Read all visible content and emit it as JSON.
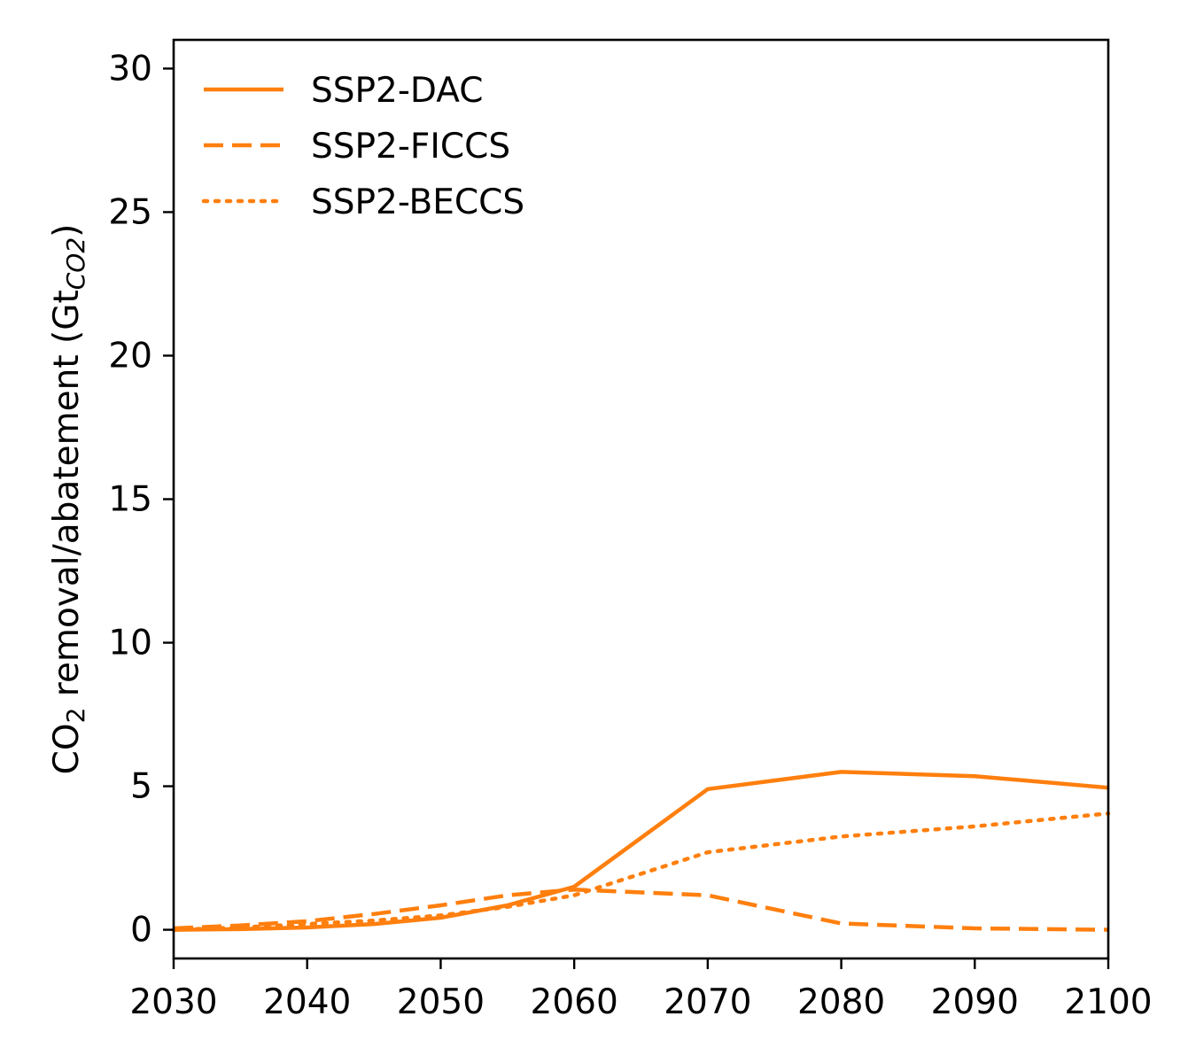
{
  "chart_data": {
    "type": "line",
    "title": "",
    "xlabel": "",
    "ylabel": {
      "prefix": "CO",
      "prefix_sub": "2",
      "main": " removal/abatement (Gt",
      "unit_sub": "CO2",
      "suffix": ")"
    },
    "xlim": [
      2030,
      2100
    ],
    "ylim": [
      -1,
      31
    ],
    "xticks": [
      2030,
      2040,
      2050,
      2060,
      2070,
      2080,
      2090,
      2100
    ],
    "yticks": [
      0,
      5,
      10,
      15,
      20,
      25,
      30
    ],
    "grid": false,
    "legend_position": "top-left",
    "series": [
      {
        "name": "SSP2-DAC",
        "style": "solid",
        "color": "#ff7f0e",
        "x": [
          2030,
          2035,
          2040,
          2045,
          2050,
          2055,
          2060,
          2070,
          2080,
          2090,
          2100
        ],
        "y": [
          0.0,
          0.02,
          0.08,
          0.2,
          0.42,
          0.85,
          1.5,
          4.9,
          5.5,
          5.35,
          4.95
        ]
      },
      {
        "name": "SSP2-FICCS",
        "style": "dashed",
        "color": "#ff7f0e",
        "x": [
          2030,
          2035,
          2040,
          2045,
          2050,
          2055,
          2060,
          2070,
          2080,
          2090,
          2100
        ],
        "y": [
          0.05,
          0.15,
          0.3,
          0.55,
          0.85,
          1.2,
          1.4,
          1.2,
          0.22,
          0.05,
          0.0
        ]
      },
      {
        "name": "SSP2-BECCS",
        "style": "dotted",
        "color": "#ff7f0e",
        "x": [
          2030,
          2035,
          2040,
          2045,
          2050,
          2055,
          2060,
          2070,
          2080,
          2090,
          2100
        ],
        "y": [
          0.0,
          0.08,
          0.2,
          0.32,
          0.5,
          0.8,
          1.2,
          2.7,
          3.25,
          3.6,
          4.05
        ]
      }
    ]
  }
}
